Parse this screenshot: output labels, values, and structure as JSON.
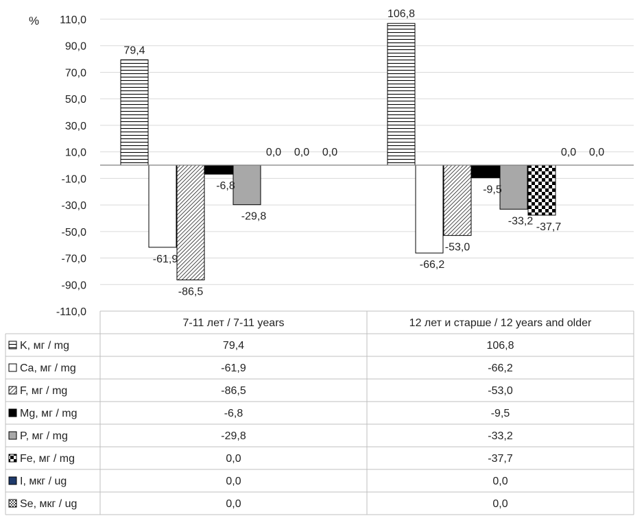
{
  "chart_data": {
    "type": "bar",
    "y_unit": "%",
    "ylim": [
      -110,
      110
    ],
    "y_ticks": [
      110,
      90,
      70,
      50,
      30,
      10,
      -10,
      -30,
      -50,
      -70,
      -90,
      -110
    ],
    "y_tick_labels": [
      "110,0",
      "90,0",
      "70,0",
      "50,0",
      "30,0",
      "10,0",
      "-10,0",
      "-30,0",
      "-50,0",
      "-70,0",
      "-90,0",
      "-110,0"
    ],
    "grid": true,
    "legend": "data-table",
    "categories": [
      "7-11 лет / 7-11 years",
      "12 лет и старше / 12  years and older"
    ],
    "series": [
      {
        "name": "K, мг / mg",
        "pattern": "horizontal-lines",
        "values": [
          79.4,
          106.8
        ],
        "labels": [
          "79,4",
          "106,8"
        ]
      },
      {
        "name": "Ca, мг / mg",
        "pattern": "white",
        "values": [
          -61.9,
          -66.2
        ],
        "labels": [
          "-61,9",
          "-66,2"
        ]
      },
      {
        "name": "F, мг / mg",
        "pattern": "diagonal-hatch",
        "values": [
          -86.5,
          -53.0
        ],
        "labels": [
          "-86,5",
          "-53,0"
        ]
      },
      {
        "name": "Mg, мг / mg",
        "pattern": "solid-black",
        "values": [
          -6.8,
          -9.5
        ],
        "labels": [
          "-6,8",
          "-9,5"
        ]
      },
      {
        "name": "P, мг / mg",
        "pattern": "solid-gray",
        "values": [
          -29.8,
          -33.2
        ],
        "labels": [
          "-29,8",
          "-33,2"
        ]
      },
      {
        "name": "Fe, мг / mg",
        "pattern": "checkerboard",
        "values": [
          0.0,
          -37.7
        ],
        "labels": [
          "0,0",
          "-37,7"
        ]
      },
      {
        "name": "I, мкг / ug",
        "pattern": "solid-navy",
        "values": [
          0.0,
          0.0
        ],
        "labels": [
          "0,0",
          "0,0"
        ]
      },
      {
        "name": "Se, мкг / ug",
        "pattern": "dotted",
        "values": [
          0.0,
          0.0
        ],
        "labels": [
          "0,0",
          "0,0"
        ]
      }
    ],
    "table_values": [
      [
        "79,4",
        "106,8"
      ],
      [
        "-61,9",
        "-66,2"
      ],
      [
        "-86,5",
        "-53,0"
      ],
      [
        "-6,8",
        "-9,5"
      ],
      [
        "-29,8",
        "-33,2"
      ],
      [
        "0,0",
        "-37,7"
      ],
      [
        "0,0",
        "0,0"
      ],
      [
        "0,0",
        "0,0"
      ]
    ]
  },
  "colors": {
    "gray_bar": "#a8a8a8",
    "navy": "#1f3a6b",
    "grid": "#d9d9d9",
    "axis": "#7f7f7f"
  }
}
